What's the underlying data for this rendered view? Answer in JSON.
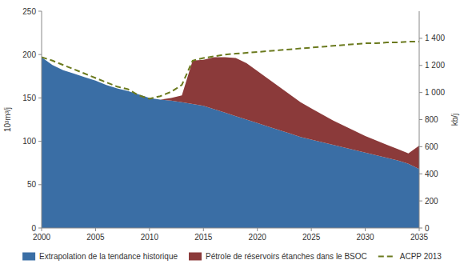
{
  "chart_data": {
    "type": "area",
    "stacked": true,
    "x": [
      2000,
      2001,
      2002,
      2003,
      2004,
      2005,
      2006,
      2007,
      2008,
      2009,
      2010,
      2011,
      2012,
      2013,
      2014,
      2015,
      2016,
      2017,
      2018,
      2019,
      2020,
      2021,
      2022,
      2023,
      2024,
      2025,
      2026,
      2027,
      2028,
      2029,
      2030,
      2031,
      2032,
      2033,
      2034,
      2035
    ],
    "series": [
      {
        "name": "Extrapolation de la tendance historique",
        "color": "#3a6ea5",
        "values": [
          197,
          188,
          182,
          178,
          174,
          170,
          165,
          161,
          158,
          154,
          150,
          148,
          147,
          145,
          143,
          141,
          137,
          133,
          129,
          125,
          121,
          117,
          113,
          109,
          105,
          102,
          99,
          96,
          93,
          90,
          87,
          84,
          81,
          78,
          74,
          68
        ]
      },
      {
        "name": "Pétrole de réservoirs étanches dans le BSOC",
        "color": "#8b3a3a",
        "values": [
          0,
          0,
          0,
          0,
          0,
          0,
          0,
          0,
          0,
          0,
          0,
          0,
          3,
          8,
          50,
          53,
          60,
          64,
          67,
          65,
          60,
          55,
          50,
          45,
          40,
          36,
          32,
          28,
          25,
          22,
          19,
          17,
          15,
          13,
          12,
          27
        ]
      },
      {
        "name": "ACPP 2013",
        "type": "line",
        "line_style": "dashed",
        "color": "#6b7a1e",
        "values": [
          197,
          193,
          188,
          183,
          178,
          173,
          168,
          163,
          160,
          153,
          149,
          152,
          157,
          165,
          193,
          196,
          198,
          200,
          201,
          202,
          203,
          204,
          205,
          206,
          207,
          208,
          209,
          210,
          211,
          212,
          213,
          213,
          214,
          214,
          215,
          215
        ]
      }
    ],
    "y_label": "10³m³/j",
    "y2_label": "kb/j",
    "xlim": [
      2000,
      2035
    ],
    "xticks": [
      2000,
      2005,
      2010,
      2015,
      2020,
      2025,
      2030,
      2035
    ],
    "ylim": [
      0,
      250
    ],
    "yticks": [
      0,
      50,
      100,
      150,
      200,
      250
    ],
    "y2lim": [
      0,
      1600
    ],
    "y2ticks": [
      0,
      200,
      400,
      600,
      800,
      {
        "value": 1000,
        "label": "1 000"
      },
      {
        "value": 1200,
        "label": "1 200"
      },
      {
        "value": 1400,
        "label": "1 400"
      }
    ],
    "grid": false,
    "legend": "bottom"
  }
}
